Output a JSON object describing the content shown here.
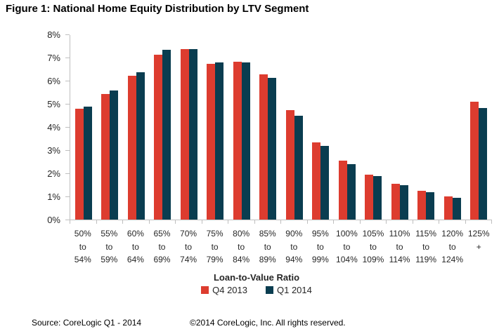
{
  "title": "Figure 1: National Home Equity Distribution by LTV Segment",
  "chart_data": {
    "type": "bar",
    "grouped": true,
    "title": "Figure 1: National Home Equity Distribution by LTV Segment",
    "categories": [
      "50% to 54%",
      "55% to 59%",
      "60% to 64%",
      "65% to 69%",
      "70% to 74%",
      "75% to 79%",
      "80% to 84%",
      "85% to 89%",
      "90% to 94%",
      "95% to 99%",
      "100% to 104%",
      "105% to 109%",
      "110% to 114%",
      "115% to 119%",
      "120% to 124%",
      "125% +"
    ],
    "series": [
      {
        "name": "Q4 2013",
        "color": "#DD3C2F",
        "values": [
          4.8,
          5.45,
          6.25,
          7.15,
          7.4,
          6.75,
          6.85,
          6.3,
          4.75,
          3.35,
          2.55,
          1.95,
          1.55,
          1.25,
          1.0,
          5.1
        ]
      },
      {
        "name": "Q1 2014",
        "color": "#0A3D50",
        "values": [
          4.9,
          5.6,
          6.4,
          7.35,
          7.4,
          6.8,
          6.8,
          6.15,
          4.5,
          3.2,
          2.4,
          1.9,
          1.5,
          1.2,
          0.95,
          4.85
        ]
      }
    ],
    "xlabel": "Loan-to-Value Ratio",
    "ylabel": "",
    "ylim": [
      0,
      8
    ],
    "ytick_step": 1,
    "yticks": [
      "0%",
      "1%",
      "2%",
      "3%",
      "4%",
      "5%",
      "6%",
      "7%",
      "8%"
    ],
    "legend_position": "bottom",
    "grid": false,
    "axis_color": "#BFBFBF"
  },
  "footer": {
    "source": "Source: CoreLogic Q1 - 2014",
    "copyright": "©2014 CoreLogic, Inc. All rights reserved."
  }
}
